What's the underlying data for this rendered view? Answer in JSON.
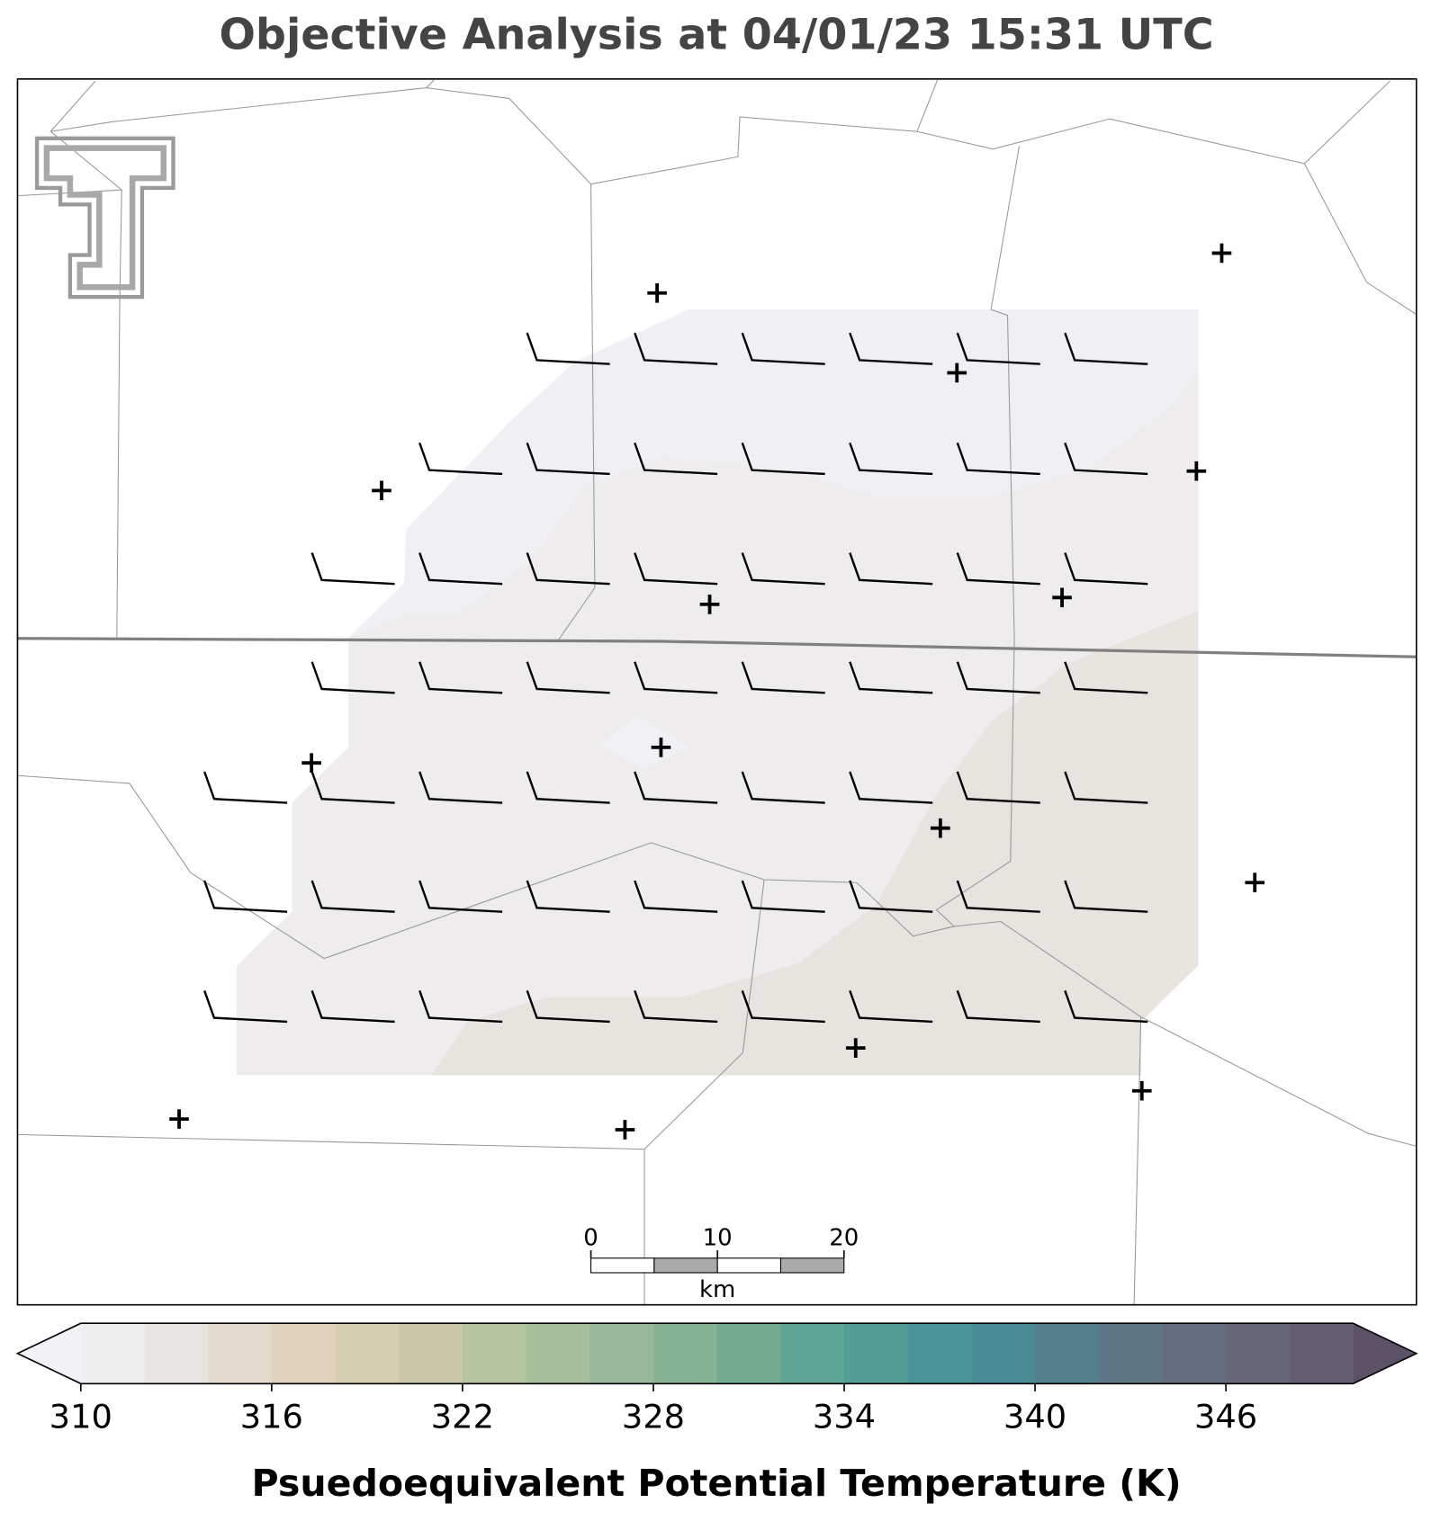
{
  "title": "Objective Analysis at 04/01/23 15:31 UTC",
  "colorbar": {
    "label": "Psuedoequivalent Potential Temperature (K)",
    "lim": [
      310,
      350
    ],
    "ticks": [
      310,
      316,
      322,
      328,
      334,
      340,
      346
    ],
    "colors": [
      "#efeeef",
      "#e8e4e1",
      "#e3d9cd",
      "#e1d3bb",
      "#d6ceb0",
      "#c9c9a7",
      "#b6c4a0",
      "#a6bf9b",
      "#97b999",
      "#86b394",
      "#71ab92",
      "#5fa595",
      "#539c98",
      "#4a9399",
      "#4b8b95",
      "#557f8d",
      "#5e7686",
      "#636c80",
      "#666579",
      "#655d73"
    ],
    "under_color": "#f2f1f6",
    "over_color": "#5b5268"
  },
  "scale_bar": {
    "lim": [
      0,
      20
    ],
    "ticks": [
      0,
      10,
      20
    ],
    "unit": "km"
  }
}
